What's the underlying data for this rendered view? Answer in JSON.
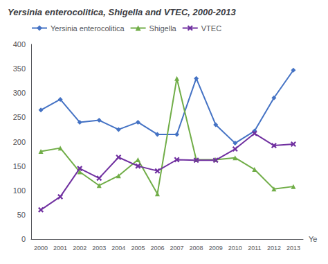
{
  "chart_data": {
    "type": "line",
    "title": "Yersinia enterocolitica, Shigella and VTEC, 2000-2013",
    "xlabel": "Ye",
    "categories": [
      "2000",
      "2001",
      "2002",
      "2003",
      "2004",
      "2005",
      "2006",
      "2007",
      "2008",
      "2009",
      "2010",
      "2011",
      "2012",
      "2013"
    ],
    "series": [
      {
        "name": "Yersinia enterocolitica",
        "color": "#4472C4",
        "marker": "diamond",
        "values": [
          265,
          287,
          240,
          244,
          225,
          240,
          215,
          215,
          330,
          235,
          197,
          222,
          290,
          347
        ]
      },
      {
        "name": "Shigella",
        "color": "#70AD47",
        "marker": "triangle",
        "values": [
          180,
          187,
          138,
          110,
          130,
          163,
          93,
          330,
          163,
          163,
          167,
          143,
          103,
          108
        ]
      },
      {
        "name": "VTEC",
        "color": "#7030A0",
        "marker": "x",
        "values": [
          60,
          87,
          145,
          125,
          168,
          150,
          140,
          163,
          162,
          162,
          185,
          217,
          192,
          195
        ]
      }
    ],
    "ylim": [
      0,
      400
    ],
    "yticks": [
      0,
      50,
      100,
      150,
      200,
      250,
      300,
      350,
      400
    ],
    "grid": false,
    "legend": "upper left"
  }
}
